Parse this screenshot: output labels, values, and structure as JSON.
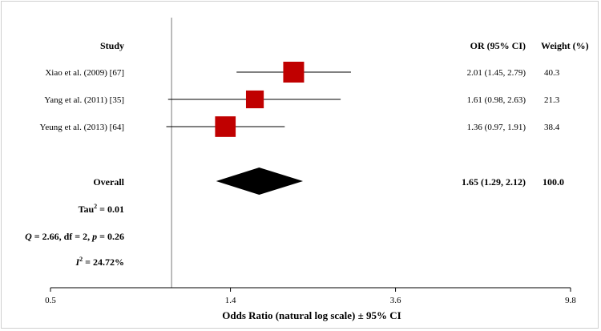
{
  "chart_data": {
    "type": "forest",
    "headers": {
      "study": "Study",
      "or_ci": "OR (95% CI)",
      "weight": "Weight (%)"
    },
    "studies": [
      {
        "label": "Xiao et al. (2009) [67]",
        "or": 2.01,
        "ci_low": 1.45,
        "ci_high": 2.79,
        "or_text": "2.01 (1.45, 2.79)",
        "weight": 40.3,
        "weight_text": "40.3"
      },
      {
        "label": "Yang et al. (2011) [35]",
        "or": 1.61,
        "ci_low": 0.98,
        "ci_high": 2.63,
        "or_text": "1.61 (0.98, 2.63)",
        "weight": 21.3,
        "weight_text": "21.3"
      },
      {
        "label": "Yeung et al. (2013) [64]",
        "or": 1.36,
        "ci_low": 0.97,
        "ci_high": 1.91,
        "or_text": "1.36 (0.97, 1.91)",
        "weight": 38.4,
        "weight_text": "38.4"
      }
    ],
    "overall": {
      "label": "Overall",
      "or": 1.65,
      "ci_low": 1.29,
      "ci_high": 2.12,
      "or_text": "1.65 (1.29, 2.12)",
      "weight_text": "100.0"
    },
    "stats": {
      "tau2_lead": "Tau",
      "tau2_sup": "2",
      "tau2_rest": " = 0.01",
      "q_sym": "Q",
      "q_mid": " = 2.66, df = 2, ",
      "p_sym": "p",
      "p_rest": " = 0.26",
      "i2_sym": "I",
      "i2_sup": "2",
      "i2_rest": " = 24.72%"
    },
    "x_axis": {
      "label": "Odds Ratio (natural log scale) ± 95% CI",
      "scale": "log",
      "range": [
        0.5,
        9.8
      ],
      "ticks": [
        0.5,
        1.4,
        3.6,
        9.8
      ],
      "tick_labels": [
        "0.5",
        "1.4",
        "3.6",
        "9.8"
      ],
      "reference_line": 1
    },
    "colors": {
      "marker": "#c00000",
      "diamond": "#000000",
      "ref_line": "#a6a6a6",
      "ci_line": "#000000"
    }
  }
}
